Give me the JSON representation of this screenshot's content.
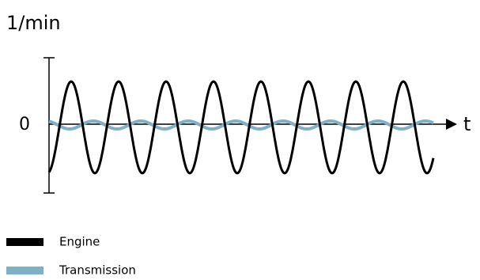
{
  "y_axis_label": "1/min",
  "origin_label": "0",
  "x_axis_label": "t",
  "legend": [
    {
      "name": "Engine",
      "color": "#000000"
    },
    {
      "name": "Transmission",
      "color": "#7fb0c8"
    }
  ]
}
